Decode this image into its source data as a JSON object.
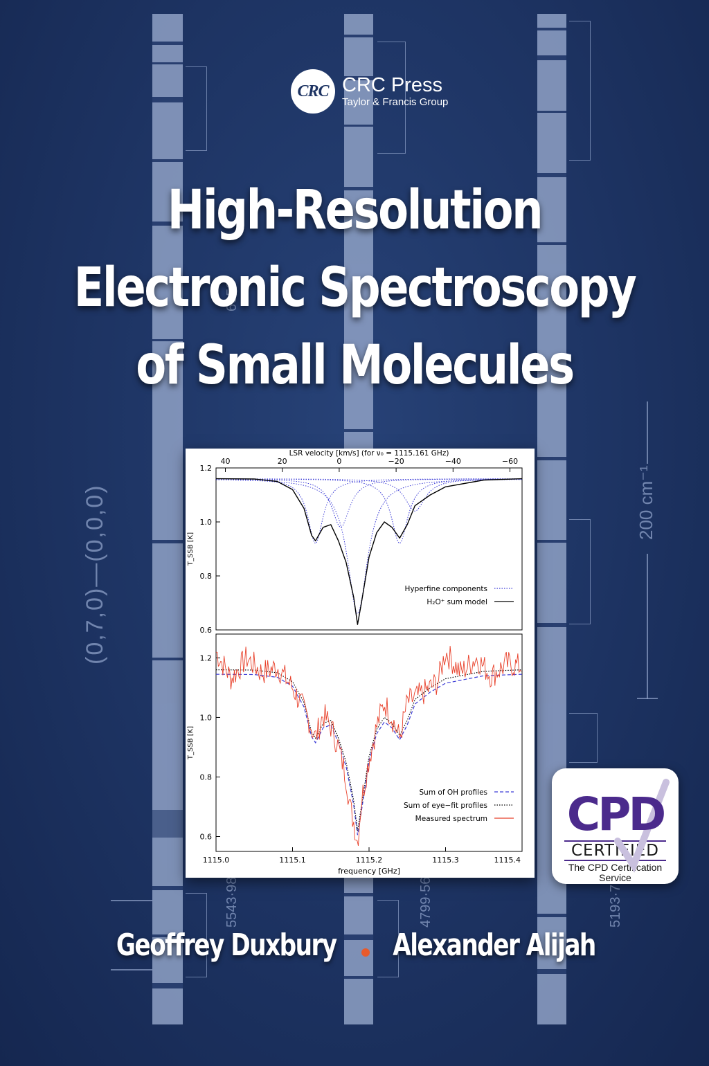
{
  "publisher": {
    "logo_text": "CRC",
    "name": "CRC Press",
    "group": "Taylor & Francis Group"
  },
  "title": {
    "line1": "High-Resolution",
    "line2": "Electronic Spectroscopy",
    "line3": "of Small Molecules"
  },
  "authors": {
    "author1": "Geoffrey Duxbury",
    "author2": "Alexander Alijah"
  },
  "badge": {
    "mark": "CPD",
    "certified": "CERTIFIED",
    "service_line1": "The CPD Certification",
    "service_line2": "Service"
  },
  "background": {
    "band_label": "(0,7,0)—(0,0,0)",
    "scale_label": "200 cm⁻¹",
    "wavelengths": [
      "6650",
      "5543·98",
      "4799·56",
      "5193·79"
    ]
  },
  "colors": {
    "background": "#1d3362",
    "title": "#ffffff",
    "author_separator": "#e85a2a",
    "cpd_purple": "#4b2a8c",
    "model_line": "#000000",
    "hyperfine": "#3b3bd6",
    "measured": "#e8402a"
  },
  "chart_data": [
    {
      "type": "line",
      "title": "",
      "top_axis_label": "LSR velocity [km/s]  (for ν₀ = 1115.161 GHz)",
      "top_ticks": [
        "40",
        "20",
        "0",
        "−20",
        "−40",
        "−60"
      ],
      "ylabel": "T_SSB [K]",
      "y_ticks": [
        "1.2",
        "1.0",
        "0.8",
        "0.6"
      ],
      "xlim": [
        1115.0,
        1115.4
      ],
      "ylim": [
        0.6,
        1.2
      ],
      "legend_position": "bottom-right",
      "series": [
        {
          "name": "Hyperfine components",
          "style": "dotted",
          "color": "#3b3bd6"
        },
        {
          "name": "H₂O⁺ sum model",
          "style": "solid",
          "color": "#000000"
        }
      ],
      "sum_model": {
        "x": [
          1115.0,
          1115.05,
          1115.08,
          1115.1,
          1115.115,
          1115.125,
          1115.13,
          1115.14,
          1115.15,
          1115.16,
          1115.17,
          1115.18,
          1115.185,
          1115.19,
          1115.2,
          1115.21,
          1115.22,
          1115.23,
          1115.24,
          1115.25,
          1115.26,
          1115.28,
          1115.3,
          1115.35,
          1115.4
        ],
        "y": [
          1.16,
          1.159,
          1.15,
          1.12,
          1.05,
          0.95,
          0.93,
          0.98,
          0.99,
          0.93,
          0.85,
          0.72,
          0.62,
          0.7,
          0.87,
          0.96,
          1.0,
          0.98,
          0.94,
          0.99,
          1.06,
          1.1,
          1.13,
          1.155,
          1.16
        ]
      },
      "hyperfine_components": [
        {
          "center": 1115.13,
          "depth": 0.24,
          "width": 0.012
        },
        {
          "center": 1115.163,
          "depth": 0.18,
          "width": 0.014
        },
        {
          "center": 1115.185,
          "depth": 0.5,
          "width": 0.016
        },
        {
          "center": 1115.24,
          "depth": 0.24,
          "width": 0.013
        },
        {
          "center": 1115.26,
          "depth": 0.12,
          "width": 0.016
        }
      ]
    },
    {
      "type": "line",
      "title": "",
      "xlabel": "frequency [GHz]",
      "x_ticks": [
        "1115.0",
        "1115.1",
        "1115.2",
        "1115.3",
        "1115.4"
      ],
      "ylabel": "T_SSB [K]",
      "y_ticks": [
        "1.2",
        "1.0",
        "0.8",
        "0.6"
      ],
      "xlim": [
        1115.0,
        1115.4
      ],
      "ylim": [
        0.55,
        1.28
      ],
      "legend_position": "bottom-right",
      "series": [
        {
          "name": "Sum of OH profiles",
          "style": "dashed",
          "color": "#3b3bd6"
        },
        {
          "name": "Sum of eye−fit profiles",
          "style": "dotted",
          "color": "#000000"
        },
        {
          "name": "Measured spectrum",
          "style": "solid",
          "color": "#e8402a"
        }
      ],
      "measured_spectrum": {
        "x": [
          1115.0,
          1115.02,
          1115.04,
          1115.06,
          1115.08,
          1115.1,
          1115.11,
          1115.12,
          1115.13,
          1115.14,
          1115.15,
          1115.16,
          1115.17,
          1115.175,
          1115.18,
          1115.185,
          1115.19,
          1115.2,
          1115.21,
          1115.22,
          1115.23,
          1115.24,
          1115.25,
          1115.27,
          1115.29,
          1115.3,
          1115.32,
          1115.34,
          1115.36,
          1115.38,
          1115.4
        ],
        "y": [
          1.22,
          1.13,
          1.2,
          1.15,
          1.17,
          1.1,
          1.05,
          1.0,
          0.93,
          1.01,
          0.97,
          0.9,
          0.8,
          0.7,
          0.65,
          0.58,
          0.72,
          0.86,
          0.97,
          1.05,
          1.0,
          0.93,
          1.05,
          1.08,
          1.12,
          1.22,
          1.15,
          1.2,
          1.14,
          1.18,
          1.17
        ]
      }
    }
  ]
}
